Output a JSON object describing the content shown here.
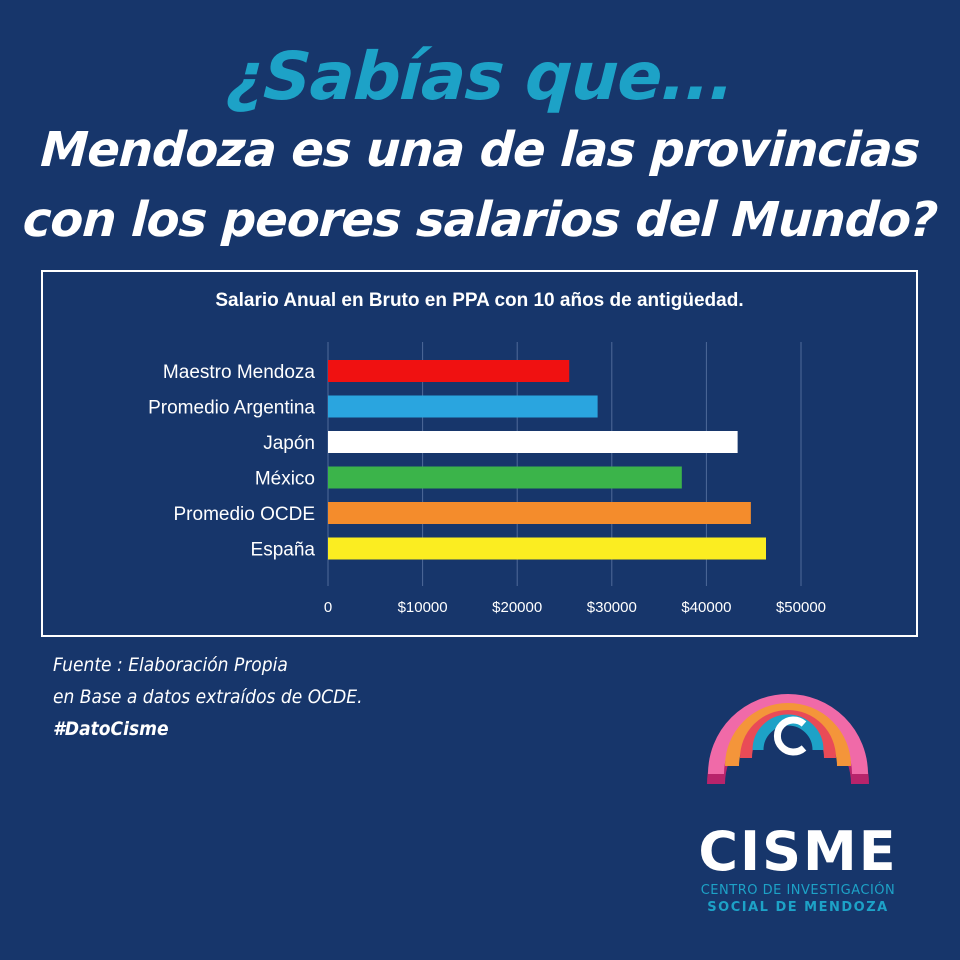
{
  "header": {
    "question": "¿Sabías que...",
    "line1": "Mendoza es una de las provincias",
    "line2": "con los peores salarios del Mundo?"
  },
  "chart_data": {
    "type": "bar",
    "orientation": "horizontal",
    "title": "Salario Anual en Bruto en PPA con 10 años de antigüedad.",
    "categories": [
      "Maestro Mendoza",
      "Promedio Argentina",
      "Japón",
      "México",
      "Promedio OCDE",
      "España"
    ],
    "values": [
      25500,
      28500,
      43300,
      37400,
      44700,
      46300
    ],
    "colors": [
      "#f01111",
      "#2aa5df",
      "#ffffff",
      "#3bb44a",
      "#f48c2c",
      "#fbed21"
    ],
    "xlim": [
      0,
      50000
    ],
    "ticks": [
      0,
      10000,
      20000,
      30000,
      40000,
      50000
    ],
    "tick_labels": [
      "0",
      "$10000",
      "$20000",
      "$30000",
      "$40000",
      "$50000"
    ],
    "grid": "vertical"
  },
  "footer": {
    "source_line1": "Fuente : Elaboración Propia",
    "source_line2": "en Base a datos extraídos de OCDE.",
    "hashtag": "#DatoCisme"
  },
  "logo": {
    "name": "CISME",
    "subtitle_line1": "CENTRO DE INVESTIGACIÓN",
    "subtitle_line2": "SOCIAL DE MENDOZA",
    "icon": "rainbow-arc-icon"
  }
}
